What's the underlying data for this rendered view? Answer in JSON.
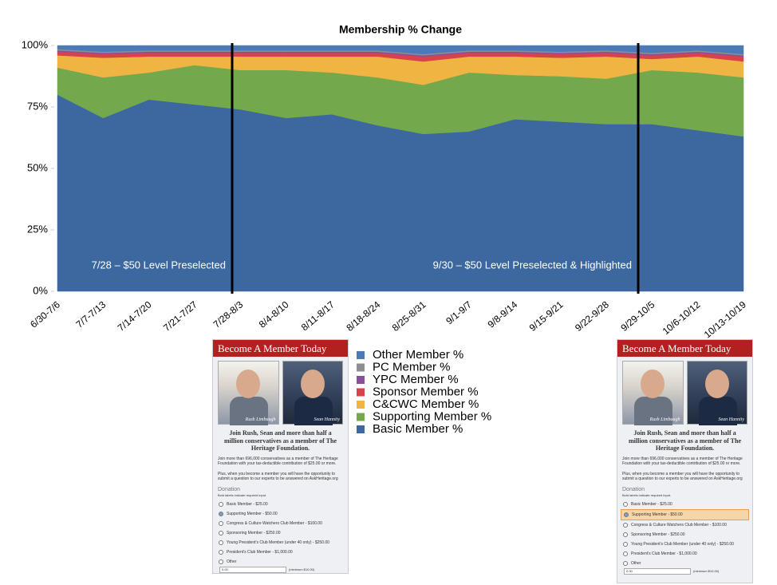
{
  "chart_data": {
    "type": "stacked_area",
    "title": "Membership % Change",
    "categories": [
      "6/30-7/6",
      "7/7-7/13",
      "7/14-7/20",
      "7/21-7/27",
      "7/28-8/3",
      "8/4-8/10",
      "8/11-8/17",
      "8/18-8/24",
      "8/25-8/31",
      "9/1-9/7",
      "9/8-9/14",
      "9/15-9/21",
      "9/22-9/28",
      "9/29-10/5",
      "10/6-10/12",
      "10/13-10/19"
    ],
    "series": [
      {
        "name": "Basic Member %",
        "color": "#3c679f",
        "values": [
          80,
          70.5,
          78,
          76,
          74,
          70.5,
          72,
          67.5,
          64,
          65,
          70,
          69,
          68,
          68,
          65.5,
          63
        ]
      },
      {
        "name": "Supporting Member %",
        "color": "#73a84c",
        "values": [
          11,
          16.5,
          11,
          16,
          16,
          19.5,
          17,
          19.5,
          20,
          24,
          18,
          18.5,
          18.5,
          22,
          23.5,
          24
        ]
      },
      {
        "name": "C&CWC Member %",
        "color": "#f0b443",
        "values": [
          5,
          8,
          6.5,
          3.5,
          5.5,
          5.5,
          6.5,
          8.5,
          9.5,
          6.5,
          7.5,
          7.5,
          9,
          4.5,
          6.5,
          6.5
        ]
      },
      {
        "name": "Sponsor Member %",
        "color": "#d8424b",
        "values": [
          1.5,
          1.5,
          1.5,
          1.5,
          1.5,
          1.5,
          1.5,
          1.5,
          2,
          1.5,
          1.5,
          1.5,
          1.5,
          1.5,
          1.5,
          2
        ]
      },
      {
        "name": "YPC Member %",
        "color": "#8a4f99",
        "values": [
          0.5,
          0.5,
          0.5,
          0.5,
          0.5,
          0.5,
          0.5,
          0.5,
          0.5,
          0.5,
          0.5,
          0.5,
          0.5,
          0.5,
          0.5,
          0.5
        ]
      },
      {
        "name": "PC Member %",
        "color": "#8e8e8e",
        "values": [
          0.5,
          0.5,
          0.5,
          0.5,
          0.5,
          0.5,
          0.5,
          0.5,
          0.5,
          0.5,
          0.5,
          0.5,
          0.5,
          0.5,
          0.5,
          0.5
        ]
      },
      {
        "name": "Other Member %",
        "color": "#4c7ab6",
        "values": [
          1.5,
          2.5,
          2,
          2,
          2,
          2,
          2,
          2,
          3.5,
          2,
          2,
          2.5,
          2,
          3,
          2,
          3.5
        ]
      }
    ],
    "ylim": [
      0,
      100
    ],
    "yticks": [
      {
        "value": 0,
        "label": "0%"
      },
      {
        "value": 25,
        "label": "25%"
      },
      {
        "value": 50,
        "label": "50%"
      },
      {
        "value": 75,
        "label": "75%"
      },
      {
        "value": 100,
        "label": "100%"
      }
    ],
    "legend": "right",
    "annotations": [
      "7/28 – $50 Level Preselected",
      "9/30 – $50 Level Preselected & Highlighted"
    ]
  },
  "member_form": {
    "header": "Become A Member Today",
    "photo_captions": [
      "Rush Limbaugh",
      "Sean Hannity"
    ],
    "intro": "Join Rush, Sean and more than half a million conservatives as a member of The Heritage Foundation.",
    "paragraphs": [
      "Join more than 696,000 conservatives as a member of The Heritage Foundation with your tax-deductible contribution of $25.00 or more.",
      "Plus, when you become a member you will have the opportunity to submit a question to our experts to be answered on AskHeritage.org"
    ],
    "section": "Donation",
    "required_note": "Bold labels indicate required input.",
    "options": [
      "Basic Member - $25.00",
      "Supporting Member - $50.00",
      "Congress & Culture Watchers Club Member - $100.00",
      "Sponsoring Member - $250.00",
      "Young President's Club Member (under 40 only) - $250.00",
      "President's Club Member - $1,000.00",
      "Other"
    ],
    "other_amount": "0.00",
    "minimum_note": "(minimum $10.00)"
  }
}
